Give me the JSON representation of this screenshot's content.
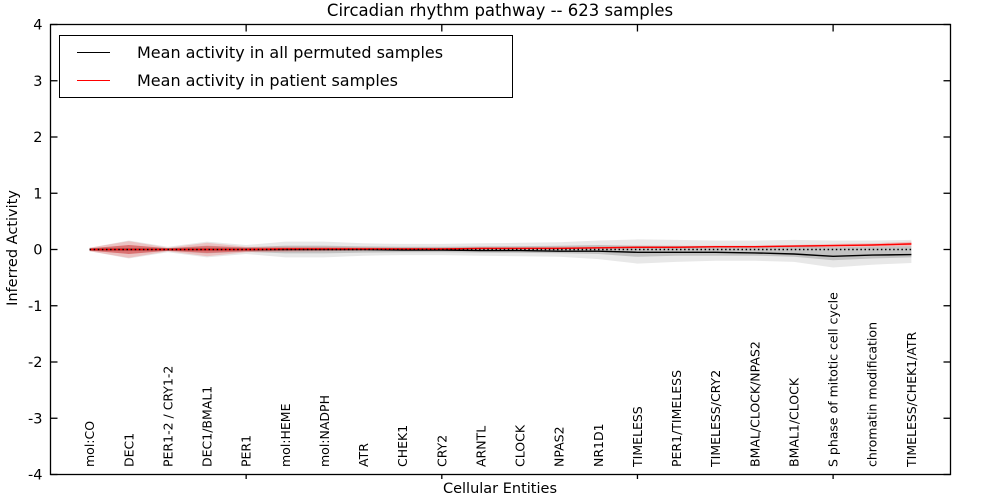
{
  "title": "Circadian rhythm pathway -- 623 samples",
  "legend": {
    "items": [
      {
        "label": "Mean activity in all permuted samples",
        "color": "#000000"
      },
      {
        "label": "Mean activity in patient samples",
        "color": "#ff0000"
      }
    ]
  },
  "colors": {
    "axis": "#000000",
    "permuted_line": "#000000",
    "patient_line": "#ff0000",
    "permuted_band_outer": "rgba(0,0,0,0.09)",
    "permuted_band_inner": "rgba(0,0,0,0.16)",
    "patient_band_outer": "rgba(255,0,0,0.16)",
    "patient_band_inner": "rgba(255,0,0,0.30)"
  },
  "chart_data": {
    "type": "line",
    "title": "Circadian rhythm pathway -- 623 samples",
    "xlabel": "Cellular Entities",
    "ylabel": "Inferred Activity",
    "ylim": [
      -4,
      4
    ],
    "yticks": [
      -4,
      -3,
      -2,
      -1,
      0,
      1,
      2,
      3,
      4
    ],
    "xlim": [
      0,
      23
    ],
    "xtick_positions": [
      5,
      10,
      15,
      20
    ],
    "grid": false,
    "legend_position": "upper left",
    "categories": [
      "mol:CO",
      "DEC1",
      "PER1-2 / CRY1-2",
      "DEC1/BMAL1",
      "PER1",
      "mol:HEME",
      "mol:NADPH",
      "ATR",
      "CHEK1",
      "CRY2",
      "ARNTL",
      "CLOCK",
      "NPAS2",
      "NR1D1",
      "TIMELESS",
      "PER1/TIMELESS",
      "TIMELESS/CRY2",
      "BMAL/CLOCK/NPAS2",
      "BMAL1/CLOCK",
      "S phase of mitotic cell cycle",
      "chromatin modification",
      "TIMELESS/CHEK1/ATR"
    ],
    "x": [
      1,
      2,
      3,
      4,
      5,
      6,
      7,
      8,
      9,
      10,
      11,
      12,
      13,
      14,
      15,
      16,
      17,
      18,
      19,
      20,
      21,
      22
    ],
    "series": [
      {
        "name": "Mean activity in all permuted samples",
        "style": "solid",
        "color": "#000000",
        "values": [
          0,
          0,
          0,
          0,
          0,
          0,
          0,
          0,
          -0.01,
          -0.01,
          -0.02,
          -0.02,
          -0.03,
          -0.03,
          -0.05,
          -0.05,
          -0.05,
          -0.06,
          -0.08,
          -0.12,
          -0.1,
          -0.09
        ]
      },
      {
        "name": "Mean activity in patient samples",
        "style": "solid",
        "color": "#ff0000",
        "values": [
          0,
          0,
          0,
          0,
          0,
          0.01,
          0.01,
          0.01,
          0.01,
          0.01,
          0.02,
          0.02,
          0.02,
          0.03,
          0.04,
          0.04,
          0.05,
          0.05,
          0.06,
          0.07,
          0.08,
          0.1
        ]
      },
      {
        "name": "zero-reference-dotted",
        "style": "dotted",
        "color": "#000000",
        "values": [
          0,
          0,
          0,
          0,
          0,
          0,
          0,
          0,
          0,
          0,
          0,
          0,
          0,
          0,
          0,
          0,
          0,
          0,
          0,
          0,
          0,
          0
        ]
      }
    ],
    "bands": [
      {
        "name": "permuted-outer-band",
        "color": "rgba(0,0,0,0.09)",
        "upper": [
          0.03,
          0.16,
          0.05,
          0.14,
          0.08,
          0.14,
          0.14,
          0.11,
          0.1,
          0.1,
          0.11,
          0.12,
          0.13,
          0.16,
          0.18,
          0.17,
          0.16,
          0.16,
          0.17,
          0.16,
          0.16,
          0.17
        ],
        "lower": [
          -0.03,
          -0.16,
          -0.05,
          -0.14,
          -0.08,
          -0.14,
          -0.14,
          -0.11,
          -0.1,
          -0.1,
          -0.11,
          -0.12,
          -0.13,
          -0.17,
          -0.25,
          -0.22,
          -0.2,
          -0.2,
          -0.22,
          -0.32,
          -0.27,
          -0.24
        ]
      },
      {
        "name": "permuted-inner-band",
        "color": "rgba(0,0,0,0.16)",
        "upper": [
          0.02,
          0.08,
          0.025,
          0.07,
          0.04,
          0.07,
          0.07,
          0.055,
          0.05,
          0.05,
          0.055,
          0.06,
          0.065,
          0.08,
          0.07,
          0.065,
          0.06,
          0.06,
          0.065,
          0.04,
          0.05,
          0.06
        ],
        "lower": [
          -0.02,
          -0.08,
          -0.025,
          -0.07,
          -0.04,
          -0.07,
          -0.07,
          -0.055,
          -0.05,
          -0.05,
          -0.055,
          -0.06,
          -0.065,
          -0.08,
          -0.13,
          -0.11,
          -0.11,
          -0.11,
          -0.13,
          -0.19,
          -0.16,
          -0.14
        ]
      },
      {
        "name": "patient-outer-band",
        "color": "rgba(255,0,0,0.16)",
        "upper": [
          0.03,
          0.15,
          0.03,
          0.12,
          0.05,
          0.05,
          0.05,
          0.04,
          0.03,
          0.03,
          0.04,
          0.04,
          0.05,
          0.05,
          0.06,
          0.06,
          0.07,
          0.07,
          0.08,
          0.1,
          0.11,
          0.14
        ],
        "lower": [
          -0.03,
          -0.15,
          -0.03,
          -0.12,
          -0.05,
          -0.04,
          -0.03,
          -0.02,
          -0.01,
          -0.01,
          0,
          0,
          0,
          0.01,
          0.02,
          0.02,
          0.03,
          0.03,
          0.04,
          0.04,
          0.05,
          0.06
        ]
      },
      {
        "name": "patient-inner-band",
        "color": "rgba(255,0,0,0.30)",
        "upper": [
          0.02,
          0.08,
          0.02,
          0.06,
          0.03,
          0.03,
          0.03,
          0.025,
          0.02,
          0.02,
          0.03,
          0.03,
          0.035,
          0.04,
          0.05,
          0.05,
          0.06,
          0.06,
          0.07,
          0.08,
          0.09,
          0.12
        ],
        "lower": [
          -0.02,
          -0.08,
          -0.02,
          -0.06,
          -0.03,
          -0.02,
          -0.01,
          -0.005,
          0,
          0,
          0.01,
          0.01,
          0.01,
          0.02,
          0.03,
          0.03,
          0.04,
          0.04,
          0.05,
          0.06,
          0.07,
          0.08
        ]
      }
    ]
  }
}
